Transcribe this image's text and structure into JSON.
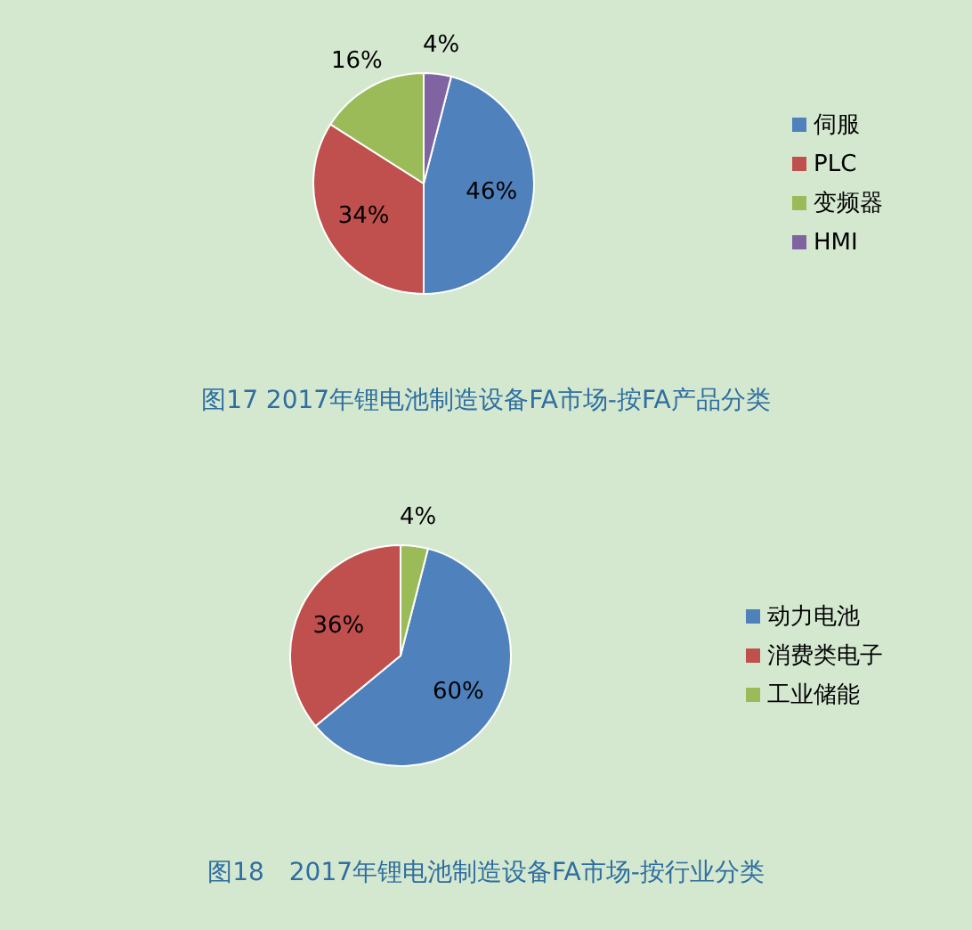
{
  "chart_data": [
    {
      "type": "pie",
      "title": "图17 2017年锂电池制造设备FA市场-按FA产品分类",
      "categories": [
        "伺服",
        "PLC",
        "变频器",
        "HMI"
      ],
      "values": [
        46,
        34,
        16,
        4
      ],
      "colors": [
        "#4f81bd",
        "#c0504d",
        "#9bbb59",
        "#8064a2"
      ],
      "value_labels": [
        "46%",
        "34%",
        "16%",
        "4%"
      ],
      "legend": "right"
    },
    {
      "type": "pie",
      "title": "图18　2017年锂电池制造设备FA市场-按行业分类",
      "categories": [
        "动力电池",
        "消费类电子",
        "工业储能"
      ],
      "values": [
        60,
        36,
        4
      ],
      "colors": [
        "#4f81bd",
        "#c0504d",
        "#9bbb59"
      ],
      "value_labels": [
        "60%",
        "36%",
        "4%"
      ],
      "legend": "right"
    }
  ]
}
